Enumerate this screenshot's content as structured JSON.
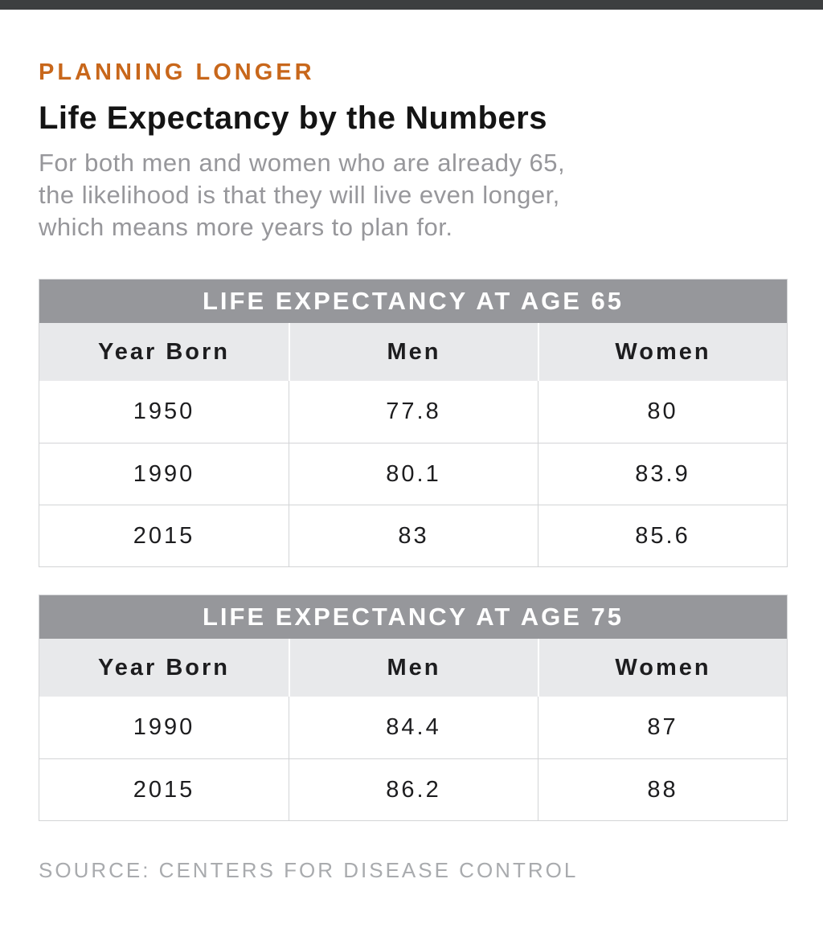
{
  "page": {
    "eyebrow": "PLANNING LONGER",
    "title": "Life Expectancy by the Numbers",
    "subtitle_lines": [
      "For both men and women who are already 65,",
      "the likelihood is that they will live even longer,",
      "which means more years to plan for."
    ],
    "source": "SOURCE: CENTERS FOR DISEASE CONTROL"
  },
  "colors": {
    "accent_orange": "#c8671b",
    "top_bar": "#3d3f40",
    "table_title_bg": "#96979b",
    "column_header_bg": "#e8e9eb",
    "table_border": "#d3d4d6",
    "text_dark": "#1d1d1f",
    "subtitle_gray": "#97979b",
    "source_gray": "#a9abae"
  },
  "chart_data": [
    {
      "type": "table",
      "title": "LIFE EXPECTANCY AT AGE 65",
      "columns": [
        "Year Born",
        "Men",
        "Women"
      ],
      "rows": [
        [
          "1950",
          "77.8",
          "80"
        ],
        [
          "1990",
          "80.1",
          "83.9"
        ],
        [
          "2015",
          "83",
          "85.6"
        ]
      ]
    },
    {
      "type": "table",
      "title": "LIFE EXPECTANCY AT AGE 75",
      "columns": [
        "Year Born",
        "Men",
        "Women"
      ],
      "rows": [
        [
          "1990",
          "84.4",
          "87"
        ],
        [
          "2015",
          "86.2",
          "88"
        ]
      ]
    }
  ]
}
